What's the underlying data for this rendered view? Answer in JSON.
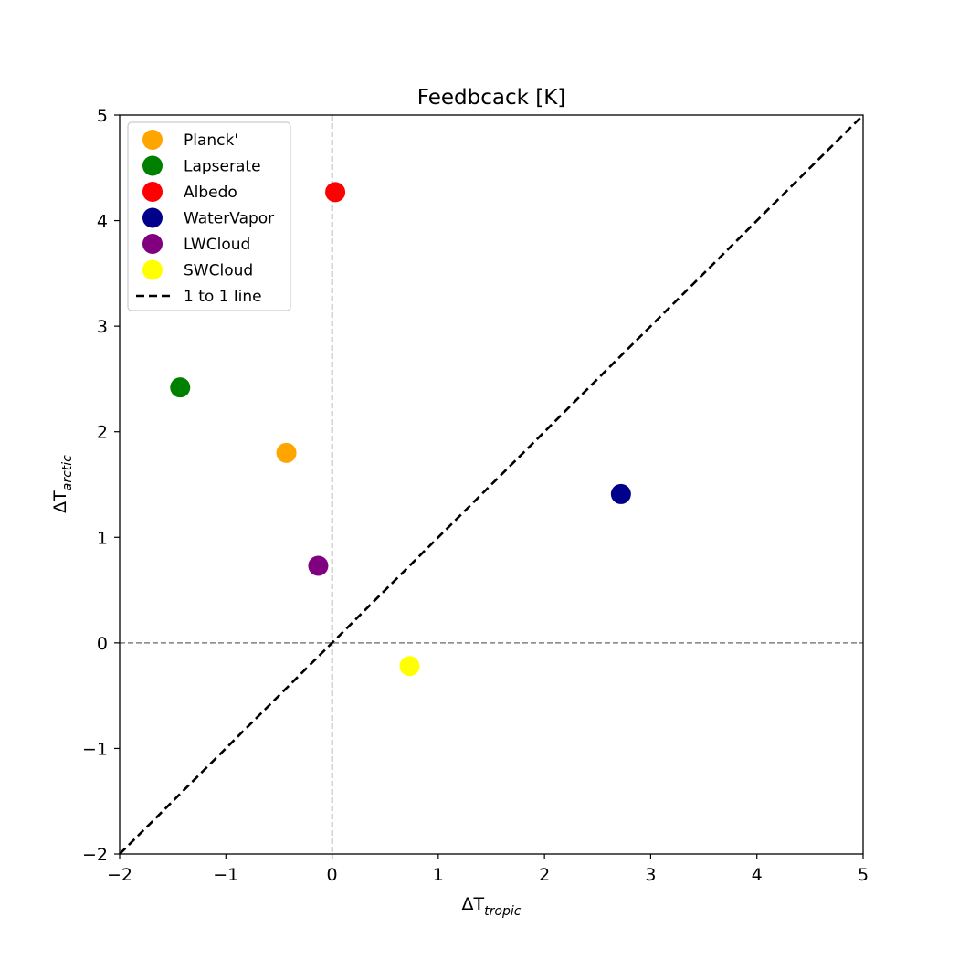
{
  "chart_data": {
    "type": "scatter",
    "title": "Feedbcack [K]",
    "xlabel": {
      "prefix": "ΔT",
      "subscript": "tropic"
    },
    "ylabel": {
      "prefix": "ΔT",
      "subscript": "arctic"
    },
    "xlim": [
      -2,
      5
    ],
    "ylim": [
      -2,
      5
    ],
    "xticks": [
      -2,
      -1,
      0,
      1,
      2,
      3,
      4,
      5
    ],
    "yticks": [
      -2,
      -1,
      0,
      1,
      2,
      3,
      4,
      5
    ],
    "tick_labels_x": [
      "−2",
      "−1",
      "0",
      "1",
      "2",
      "3",
      "4",
      "5"
    ],
    "tick_labels_y": [
      "−2",
      "−1",
      "0",
      "1",
      "2",
      "3",
      "4",
      "5"
    ],
    "grid": false,
    "reference_lines": [
      {
        "type": "vertical",
        "x": 0,
        "style": "dashed",
        "color": "#808080"
      },
      {
        "type": "horizontal",
        "y": 0,
        "style": "dashed",
        "color": "#808080"
      }
    ],
    "series": [
      {
        "name": "Planck'",
        "color": "#ffa500",
        "x": -0.43,
        "y": 1.8
      },
      {
        "name": "Lapserate",
        "color": "#008000",
        "x": -1.43,
        "y": 2.42
      },
      {
        "name": "Albedo",
        "color": "#ff0000",
        "x": 0.03,
        "y": 4.27
      },
      {
        "name": "WaterVapor",
        "color": "#00008b",
        "x": 2.72,
        "y": 1.41
      },
      {
        "name": "LWCloud",
        "color": "#800080",
        "x": -0.13,
        "y": 0.73
      },
      {
        "name": "SWCloud",
        "color": "#ffff00",
        "x": 0.73,
        "y": -0.22
      }
    ],
    "one_to_one_line": {
      "name": "1 to 1 line",
      "from": [
        -2,
        -2
      ],
      "to": [
        5,
        5
      ],
      "style": "dashed",
      "color": "#000000"
    },
    "legend": {
      "placement": "upper-left"
    }
  }
}
